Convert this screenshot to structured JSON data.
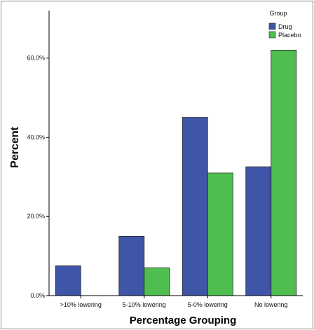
{
  "chart_data": {
    "type": "bar",
    "categories": [
      ">10% lowering",
      "5-10% lowering",
      "5-0% lowering",
      "No lowering"
    ],
    "series": [
      {
        "name": "Drug",
        "color": "#3f55a8",
        "values": [
          7.5,
          15.0,
          45.0,
          32.5
        ]
      },
      {
        "name": "Placebo",
        "color": "#4fbe4f",
        "values": [
          0.0,
          7.0,
          31.0,
          62.0
        ]
      }
    ],
    "xlabel": "Percentage Grouping",
    "ylabel": "Percent",
    "ylim": [
      0,
      72
    ],
    "yticks": [
      0,
      20,
      40,
      60
    ],
    "ytick_labels": [
      "0.0%",
      "20.0%",
      "40.0%",
      "60.0%"
    ],
    "legend": {
      "title": "Group",
      "position": "top-right"
    },
    "grid": false
  }
}
